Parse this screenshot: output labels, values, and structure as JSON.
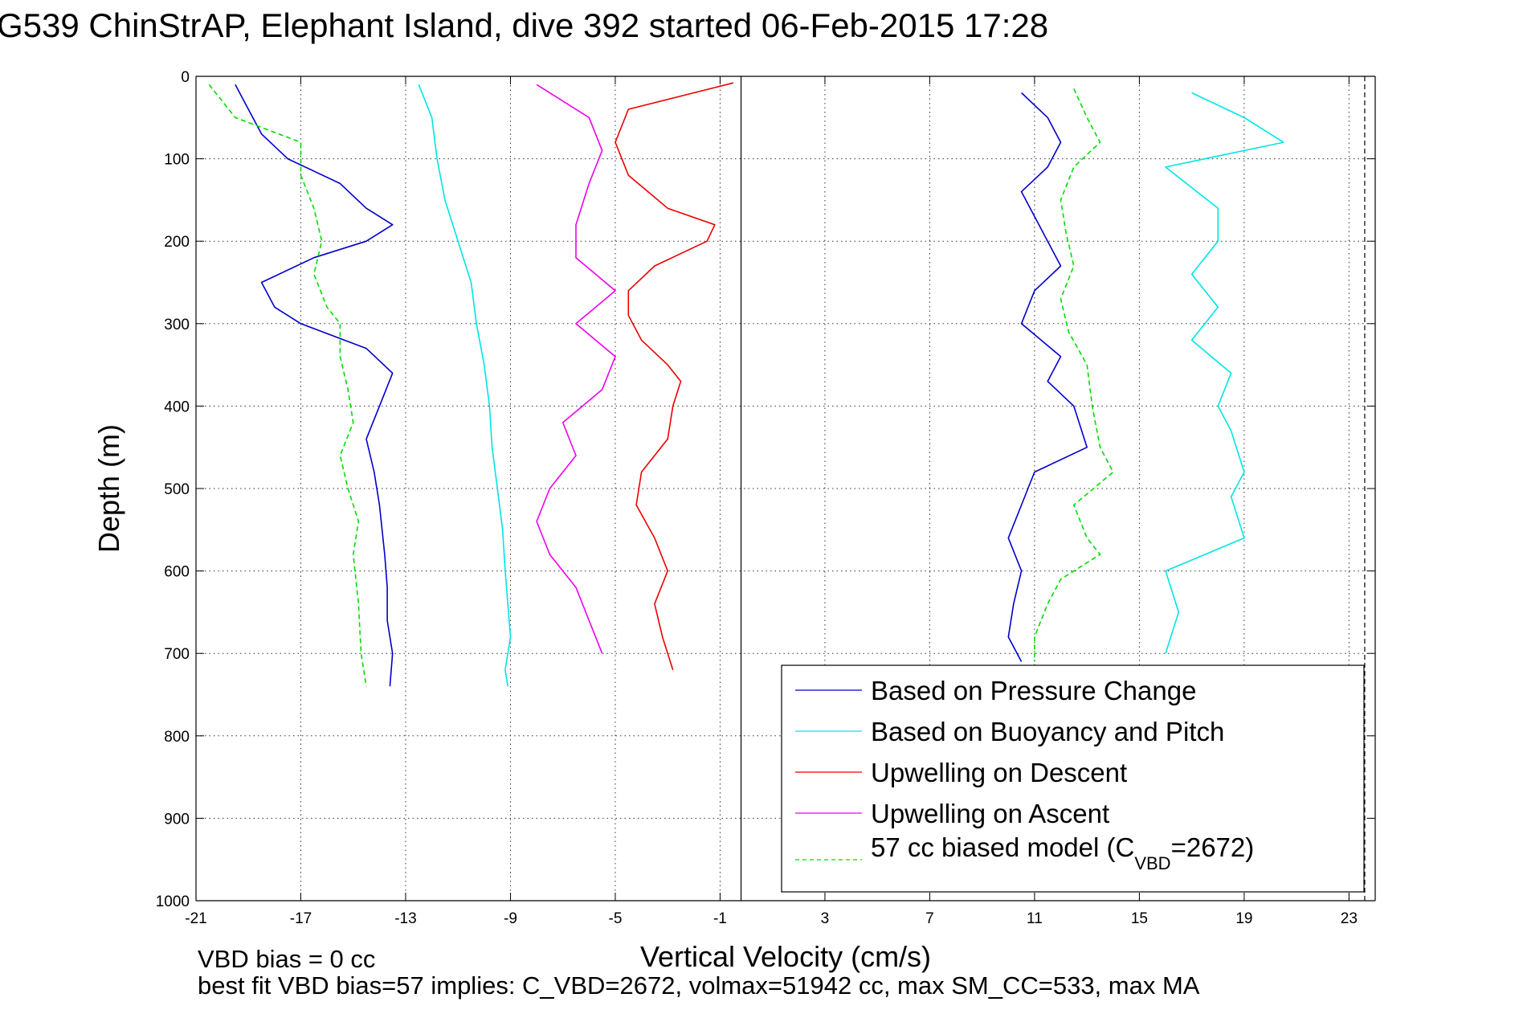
{
  "chart_data": {
    "type": "line",
    "title": "G539 ChinStrAP, Elephant Island, dive 392 started 06-Feb-2015 17:28",
    "xlabel": "Vertical Velocity (cm/s)",
    "ylabel": "Depth (m)",
    "xlim": [
      -21,
      24
    ],
    "ylim": [
      0,
      1000
    ],
    "y_reversed": true,
    "grid": true,
    "xticks": [
      "-21",
      "-17",
      "-13",
      "-9",
      "-5",
      "-1",
      "3",
      "7",
      "11",
      "15",
      "19",
      "23"
    ],
    "yticks": [
      "0",
      "100",
      "200",
      "300",
      "400",
      "500",
      "600",
      "700",
      "800",
      "900",
      "1000"
    ],
    "reference_lines": [
      {
        "x": -0.2,
        "style": "solid"
      },
      {
        "x": 23.6,
        "style": "dashed"
      }
    ],
    "footnotes": [
      "VBD bias = 0 cc",
      "best fit VBD bias=57 implies: C_VBD=2672, volmax=51942 cc, max SM_CC=533, max MA"
    ],
    "legend_position": "bottom-right",
    "legend": [
      {
        "label": "Based on Pressure Change",
        "color": "#0000cc"
      },
      {
        "label": "Based on Buoyancy and Pitch",
        "color": "#00e5e5"
      },
      {
        "label": "Upwelling on Descent",
        "color": "#ee0000"
      },
      {
        "label": "Upwelling on Ascent",
        "color": "#ee00ee"
      },
      {
        "label": "57 cc biased model (C",
        "sub": "VBD",
        "suffix": "=2672)",
        "color": "#00dd00",
        "dashed": true
      }
    ],
    "series": [
      {
        "name": "Based on Pressure Change",
        "color": "#0000cc",
        "phase": "descent",
        "x": [
          -19.5,
          -19,
          -18.5,
          -17.5,
          -15.5,
          -14.5,
          -13.5,
          -14.5,
          -16.5,
          -18.5,
          -18,
          -17,
          -14.5,
          -13.5,
          -14,
          -14.5,
          -14.2,
          -14,
          -13.8,
          -13.7,
          -13.7,
          -13.5,
          -13.6
        ],
        "y": [
          10,
          40,
          70,
          100,
          130,
          160,
          180,
          200,
          220,
          250,
          280,
          300,
          330,
          360,
          400,
          440,
          480,
          520,
          580,
          620,
          660,
          700,
          740
        ]
      },
      {
        "name": "Based on Pressure Change",
        "color": "#0000cc",
        "phase": "ascent",
        "x": [
          10.5,
          11.5,
          12,
          11.5,
          10.5,
          11,
          11.5,
          12,
          11,
          10.5,
          12,
          11.5,
          12.5,
          13,
          11,
          10.5,
          10,
          10.5,
          10.2,
          10,
          10.5
        ],
        "y": [
          20,
          50,
          80,
          110,
          140,
          170,
          200,
          230,
          260,
          300,
          340,
          370,
          400,
          450,
          480,
          520,
          560,
          600,
          640,
          680,
          710
        ]
      },
      {
        "name": "Based on Buoyancy and Pitch",
        "color": "#00e5e5",
        "phase": "descent",
        "x": [
          -12.5,
          -12,
          -11.8,
          -11.5,
          -11,
          -10.5,
          -10.3,
          -10,
          -9.8,
          -9.7,
          -9.5,
          -9.3,
          -9.2,
          -9.1,
          -9,
          -9.2,
          -9.1
        ],
        "y": [
          10,
          50,
          100,
          150,
          200,
          250,
          300,
          350,
          400,
          450,
          500,
          550,
          600,
          640,
          680,
          720,
          740
        ]
      },
      {
        "name": "Based on Buoyancy and Pitch",
        "color": "#00e5e5",
        "phase": "ascent",
        "x": [
          17,
          19,
          20.5,
          16,
          18,
          18,
          17,
          18,
          17,
          18.5,
          18,
          18.5,
          19,
          18.5,
          19,
          16,
          16.5,
          16
        ],
        "y": [
          20,
          50,
          80,
          110,
          160,
          200,
          240,
          280,
          320,
          360,
          400,
          430,
          480,
          510,
          560,
          600,
          650,
          700
        ]
      },
      {
        "name": "Upwelling on Descent",
        "color": "#ee0000",
        "phase": "descent",
        "x": [
          -0.5,
          -4.5,
          -5,
          -4.5,
          -3,
          -1.2,
          -1.5,
          -3.5,
          -4.5,
          -4.5,
          -4,
          -3,
          -2.5,
          -2.8,
          -3,
          -4,
          -4.2,
          -3.5,
          -3,
          -3.5,
          -3.2,
          -2.8
        ],
        "y": [
          8,
          40,
          80,
          120,
          160,
          180,
          200,
          230,
          260,
          290,
          320,
          350,
          370,
          400,
          440,
          480,
          520,
          560,
          600,
          640,
          680,
          720
        ]
      },
      {
        "name": "Upwelling on Ascent",
        "color": "#ee00ee",
        "phase": "ascent",
        "x": [
          -8,
          -6,
          -5.5,
          -6,
          -6.5,
          -6.5,
          -5,
          -6.5,
          -5,
          -5.5,
          -7,
          -6.5,
          -7.5,
          -8,
          -7.5,
          -6.5,
          -6,
          -5.5
        ],
        "y": [
          10,
          50,
          90,
          130,
          180,
          220,
          260,
          300,
          340,
          380,
          420,
          460,
          500,
          540,
          580,
          620,
          660,
          700
        ]
      },
      {
        "name": "57 cc biased model (CVBD=2672)",
        "color": "#00dd00",
        "dashed": true,
        "phase": "descent",
        "x": [
          -20.5,
          -19.5,
          -17,
          -17,
          -16.5,
          -16.2,
          -16.5,
          -16,
          -15.5,
          -15.5,
          -15.2,
          -15,
          -15.5,
          -15.2,
          -14.8,
          -15,
          -14.8,
          -14.7,
          -14.5
        ],
        "y": [
          10,
          50,
          80,
          120,
          160,
          200,
          240,
          280,
          300,
          340,
          380,
          420,
          460,
          500,
          540,
          580,
          640,
          700,
          740
        ]
      },
      {
        "name": "57 cc biased model (CVBD=2672)",
        "color": "#00dd00",
        "dashed": true,
        "phase": "ascent",
        "x": [
          12.5,
          13,
          13.5,
          12.5,
          12,
          12.2,
          12.5,
          12,
          12.3,
          13,
          13.2,
          13.5,
          14,
          12.5,
          13,
          13.5,
          12,
          11.5,
          11,
          11
        ],
        "y": [
          15,
          50,
          80,
          110,
          150,
          190,
          230,
          270,
          310,
          350,
          400,
          450,
          480,
          520,
          560,
          580,
          610,
          640,
          680,
          710
        ]
      }
    ]
  }
}
